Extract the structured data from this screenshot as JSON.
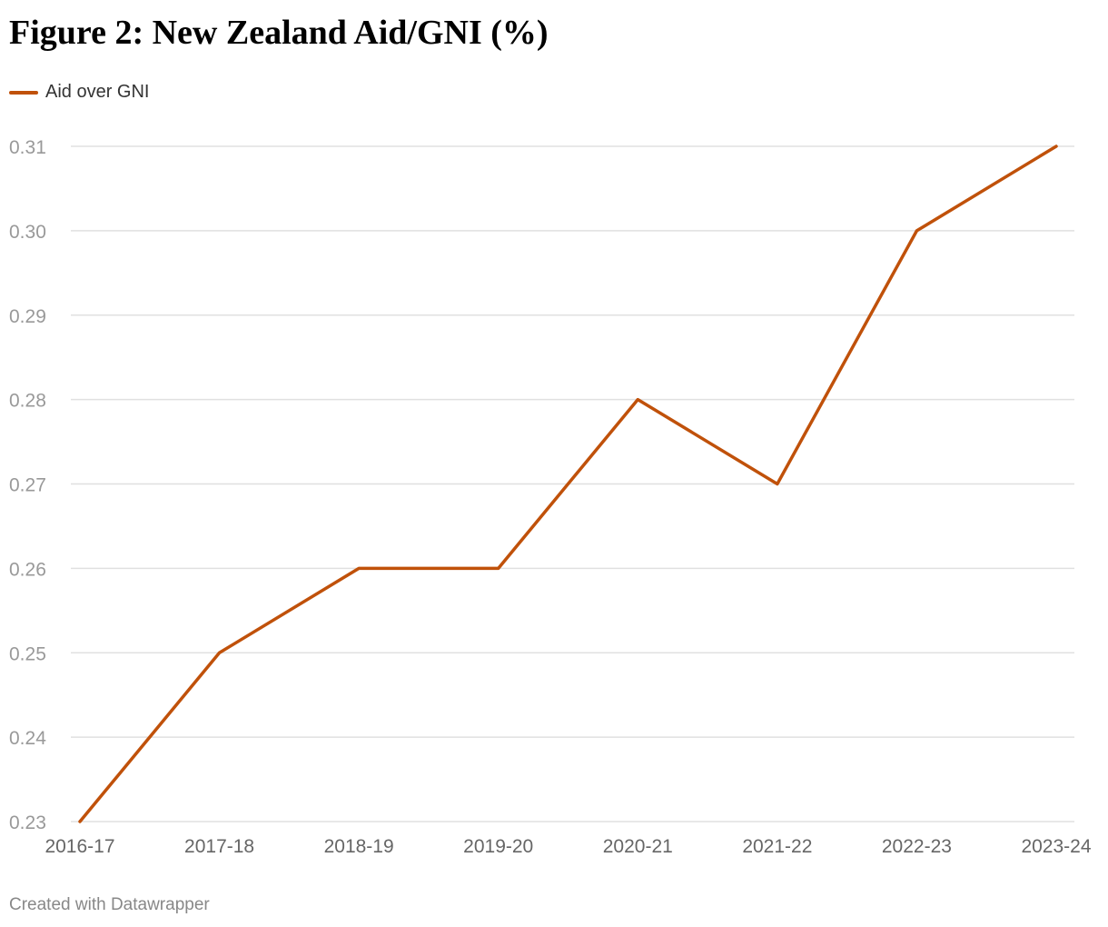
{
  "title": "Figure 2: New Zealand Aid/GNI (%)",
  "footer": {
    "credit": "Created with Datawrapper"
  },
  "colors": {
    "series": "#c0510a",
    "grid": "#e0e0e0",
    "tick_label": "#999999",
    "x_tick_label": "#666666"
  },
  "chart_data": {
    "type": "line",
    "title": "Figure 2: New Zealand Aid/GNI (%)",
    "xlabel": "",
    "ylabel": "",
    "categories": [
      "2016-17",
      "2017-18",
      "2018-19",
      "2019-20",
      "2020-21",
      "2021-22",
      "2022-23",
      "2023-24"
    ],
    "series": [
      {
        "name": "Aid over GNI",
        "values": [
          0.23,
          0.25,
          0.26,
          0.26,
          0.28,
          0.27,
          0.3,
          0.31
        ]
      }
    ],
    "ylim": [
      0.23,
      0.31
    ],
    "yticks": [
      "0.31",
      "0.30",
      "0.29",
      "0.28",
      "0.27",
      "0.26",
      "0.25",
      "0.24",
      "0.23"
    ],
    "grid": true,
    "legend_position": "top-left"
  }
}
